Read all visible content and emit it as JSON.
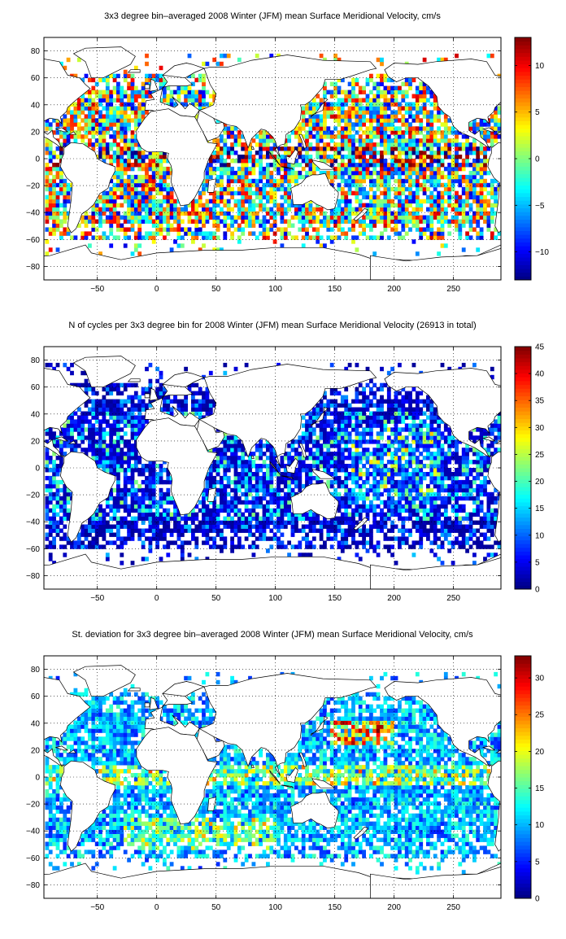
{
  "panels": [
    {
      "title": "3x3 degree bin–averaged 2008 Winter (JFM) mean Surface Meridional Velocity, cm/s",
      "colorbar": {
        "min": -13,
        "max": 13,
        "ticks": [
          -10,
          -5,
          0,
          5,
          10
        ]
      }
    },
    {
      "title": "N of cycles per 3x3 degree bin for 2008 Winter (JFM) mean Surface Meridional Velocity (26913 in total)",
      "colorbar": {
        "min": 0,
        "max": 45,
        "ticks": [
          0,
          5,
          10,
          15,
          20,
          25,
          30,
          35,
          40,
          45
        ]
      }
    },
    {
      "title": "St. deviation for 3x3 degree bin–averaged 2008 Winter (JFM) mean Surface Meridional Velocity, cm/s",
      "colorbar": {
        "min": 0,
        "max": 33,
        "ticks": [
          0,
          5,
          10,
          15,
          20,
          25,
          30
        ]
      }
    }
  ],
  "chart_data": [
    {
      "type": "heatmap",
      "title": "3x3 degree bin–averaged 2008 Winter (JFM) mean Surface Meridional Velocity, cm/s",
      "xlim": [
        -95,
        290
      ],
      "ylim": [
        -90,
        90
      ],
      "xticks": [
        -50,
        0,
        50,
        100,
        150,
        200,
        250
      ],
      "yticks": [
        -80,
        -60,
        -40,
        -20,
        0,
        20,
        40,
        60,
        80
      ],
      "grid": true,
      "bin_size_deg": 3,
      "colormap": "jet",
      "color_range": [
        -13,
        13
      ],
      "colorbar_ticks": [
        -10,
        -5,
        0,
        5,
        10
      ]
    },
    {
      "type": "heatmap",
      "title": "N of cycles per 3x3 degree bin for 2008 Winter (JFM) mean Surface Meridional Velocity (26913 in total)",
      "xlim": [
        -95,
        290
      ],
      "ylim": [
        -90,
        90
      ],
      "xticks": [
        -50,
        0,
        50,
        100,
        150,
        200,
        250
      ],
      "yticks": [
        -80,
        -60,
        -40,
        -20,
        0,
        20,
        40,
        60,
        80
      ],
      "grid": true,
      "bin_size_deg": 3,
      "colormap": "jet",
      "color_range": [
        0,
        45
      ],
      "colorbar_ticks": [
        0,
        5,
        10,
        15,
        20,
        25,
        30,
        35,
        40,
        45
      ]
    },
    {
      "type": "heatmap",
      "title": "St. deviation for 3x3 degree bin–averaged 2008 Winter (JFM) mean Surface Meridional Velocity, cm/s",
      "xlim": [
        -95,
        290
      ],
      "ylim": [
        -90,
        90
      ],
      "xticks": [
        -50,
        0,
        50,
        100,
        150,
        200,
        250
      ],
      "yticks": [
        -80,
        -60,
        -40,
        -20,
        0,
        20,
        40,
        60,
        80
      ],
      "grid": true,
      "bin_size_deg": 3,
      "colormap": "jet",
      "color_range": [
        0,
        33
      ],
      "colorbar_ticks": [
        0,
        5,
        10,
        15,
        20,
        25,
        30
      ]
    }
  ]
}
